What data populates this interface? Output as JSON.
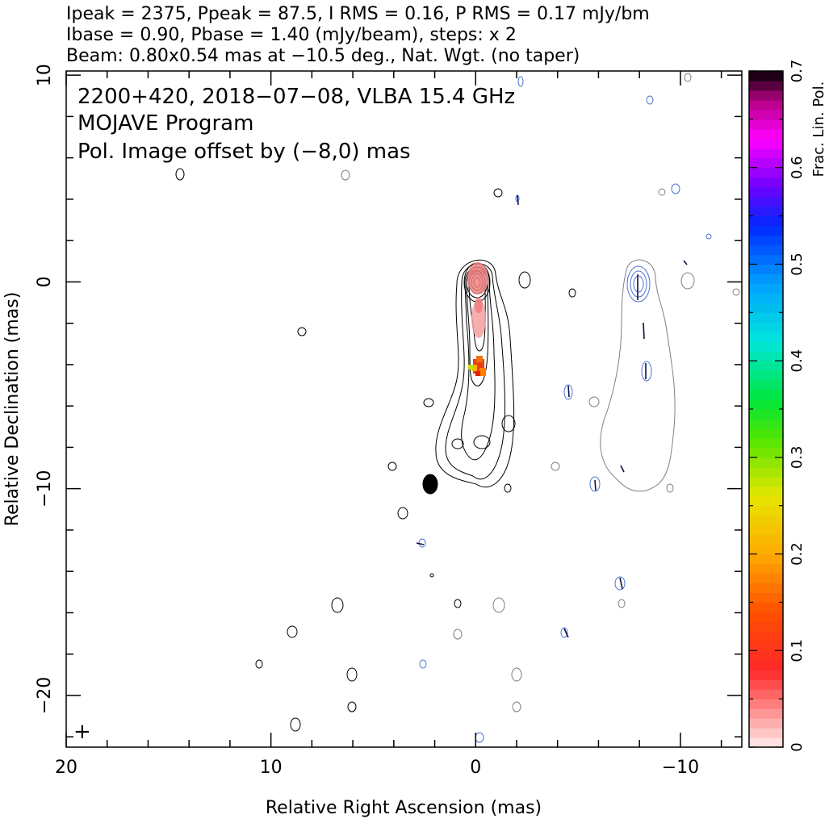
{
  "header": {
    "line1": "Ipeak = 2375, Ppeak = 87.5, I RMS = 0.16, P RMS = 0.17 mJy/bm",
    "line2": "Ibase = 0.90, Pbase = 1.40 (mJy/beam), steps: x 2",
    "line3": "Beam: 0.80x0.54 mas at −10.5 deg., Nat. Wgt. (no taper)"
  },
  "plot": {
    "title_line1": "2200+420, 2018−07−08, VLBA 15.4 GHz",
    "title_line2": "MOJAVE Program",
    "title_line3": "Pol. Image offset by (−8,0) mas",
    "title_line3_color": "#4f74d6",
    "beam_marker": "+"
  },
  "chart_data": {
    "type": "heatmap",
    "xlabel": "Relative Right Ascension (mas)",
    "ylabel": "Relative Declination (mas)",
    "xlim": [
      20,
      -13
    ],
    "ylim": [
      -22.5,
      10.2
    ],
    "x_ticks": [
      20,
      10,
      0,
      -10
    ],
    "x_tick_labels": [
      "20",
      "10",
      "0",
      "−10"
    ],
    "y_ticks": [
      10,
      0,
      -10,
      -20
    ],
    "y_tick_labels": [
      "10",
      "0",
      "−10",
      "−20"
    ],
    "colorbar": {
      "label": "Frac. Lin. Pol.",
      "range": [
        0,
        0.7
      ],
      "ticks": [
        0,
        0.1,
        0.2,
        0.3,
        0.4,
        0.5,
        0.6,
        0.7
      ],
      "tick_labels": [
        "0",
        "0.1",
        "0.2",
        "0.3",
        "0.4",
        "0.5",
        "0.6",
        "0.7"
      ]
    },
    "intensity_peak_mJy_per_beam": 2375,
    "polarization_peak_mJy_per_beam": 87.5,
    "I_rms_mJy_per_beam": 0.16,
    "P_rms_mJy_per_beam": 0.17,
    "I_base_mJy_per_beam": 0.9,
    "P_base_mJy_per_beam": 1.4,
    "contour_step_factor": 2,
    "beam": {
      "major_mas": 0.8,
      "minor_mas": 0.54,
      "pa_deg": -10.5,
      "weighting": "Nat. Wgt. (no taper)"
    },
    "polarization_offset_mas": [
      -8,
      0
    ]
  }
}
